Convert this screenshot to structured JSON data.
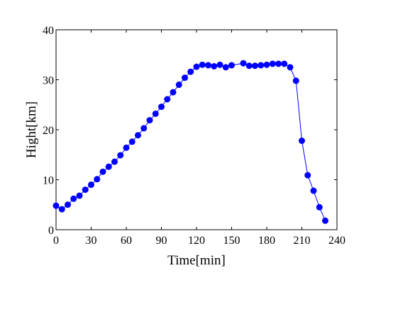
{
  "chart_data": {
    "type": "line",
    "xlabel": "Time[min]",
    "ylabel": "Hight[km]",
    "xlim": [
      0,
      240
    ],
    "ylim": [
      0,
      40
    ],
    "xticks": [
      0,
      30,
      60,
      90,
      120,
      150,
      180,
      210,
      240
    ],
    "yticks": [
      0,
      10,
      20,
      30,
      40
    ],
    "grid": false,
    "legend": "none",
    "colors": {
      "series": "#0000ff",
      "axes": "#000000"
    },
    "series": [
      {
        "x": [
          0,
          5,
          10,
          15,
          20,
          25,
          30,
          35,
          40,
          45,
          50,
          55,
          60,
          65,
          70,
          75,
          80,
          85,
          90,
          95,
          100,
          105,
          110,
          115,
          120,
          125,
          130,
          135,
          140,
          145,
          150,
          160,
          165,
          170,
          175,
          180,
          185,
          190,
          195,
          200,
          205,
          210,
          215,
          220,
          225,
          230
        ],
        "y": [
          4.8,
          4.1,
          5.0,
          6.2,
          6.8,
          8.0,
          9.0,
          10.1,
          11.6,
          12.6,
          13.6,
          14.9,
          16.4,
          17.6,
          18.9,
          20.3,
          21.9,
          23.2,
          24.6,
          26.1,
          27.5,
          29.0,
          30.4,
          31.6,
          32.6,
          33.0,
          32.9,
          32.7,
          33.0,
          32.5,
          32.9,
          33.3,
          32.8,
          32.8,
          32.9,
          33.0,
          33.2,
          33.2,
          33.2,
          32.5,
          29.8,
          17.8,
          10.9,
          7.8,
          4.5,
          1.8
        ]
      }
    ]
  }
}
